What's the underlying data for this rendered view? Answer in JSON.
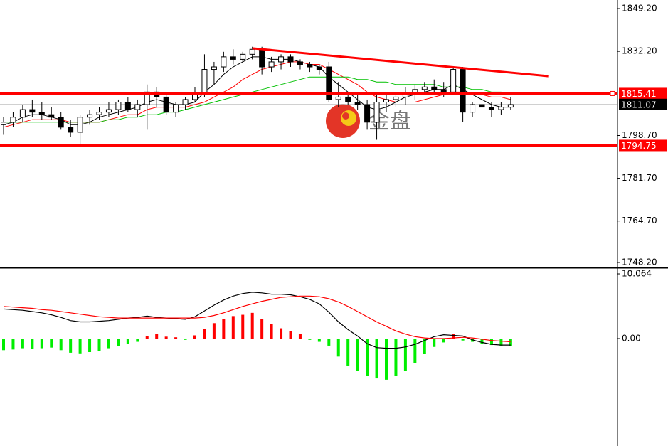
{
  "watermark": "金盘",
  "chart_data": [
    {
      "type": "candlestick",
      "categories": [
        null,
        null,
        null,
        null,
        null,
        null,
        null,
        null,
        null,
        null,
        null,
        null,
        null,
        null,
        null,
        null,
        null,
        null,
        null,
        null,
        null,
        null,
        null,
        null,
        null,
        null,
        null,
        null,
        null,
        null,
        null,
        null,
        null,
        null,
        null,
        null,
        null,
        null,
        null,
        null,
        null,
        null,
        null,
        null,
        null,
        null,
        null,
        null,
        null,
        null,
        null,
        null,
        null,
        null
      ],
      "open": [
        1803,
        1804,
        1806,
        1809,
        1808,
        1807,
        1806,
        1802,
        1800,
        1806,
        1807,
        1808,
        1809,
        1812,
        1809,
        1811,
        1816,
        1814,
        1808,
        1811,
        1813,
        1815,
        1825,
        1826,
        1830,
        1829,
        1831,
        1833,
        1826,
        1828,
        1830,
        1828,
        1827,
        1826,
        1826,
        1813,
        1814,
        1812,
        1811,
        1804,
        1812,
        1813,
        1814,
        1815,
        1817,
        1818,
        1817,
        1816,
        1825,
        1808,
        1811,
        1810,
        1809,
        1810
      ],
      "high": [
        1806,
        1808,
        1811,
        1813,
        1812,
        1810,
        1808,
        1805,
        1807,
        1809,
        1810,
        1812,
        1813,
        1814,
        1813,
        1819,
        1818,
        1816,
        1812,
        1814,
        1818,
        1831,
        1828,
        1832,
        1833,
        1832,
        1834,
        1834,
        1830,
        1831,
        1831,
        1829,
        1828,
        1827,
        1828,
        1820,
        1816,
        1816,
        1813,
        1815,
        1815,
        1816,
        1818,
        1819,
        1820,
        1821,
        1820,
        1826,
        1826,
        1812,
        1813,
        1812,
        1812,
        1814
      ],
      "low": [
        1799,
        1802,
        1804,
        1806,
        1805,
        1805,
        1801,
        1798,
        1795,
        1803,
        1805,
        1806,
        1807,
        1808,
        1806,
        1801,
        1810,
        1807,
        1806,
        1809,
        1812,
        1814,
        1819,
        1824,
        1827,
        1828,
        1829,
        1823,
        1824,
        1825,
        1826,
        1825,
        1824,
        1823,
        1812,
        1810,
        1811,
        1809,
        1801,
        1797,
        1808,
        1810,
        1811,
        1813,
        1815,
        1815,
        1814,
        1815,
        1804,
        1806,
        1808,
        1806,
        1807,
        1809
      ],
      "close": [
        1804,
        1806,
        1809,
        1808,
        1807,
        1806,
        1802,
        1800,
        1806,
        1807,
        1808,
        1809,
        1812,
        1809,
        1811,
        1816,
        1814,
        1808,
        1811,
        1813,
        1815,
        1825,
        1826,
        1830,
        1829,
        1831,
        1833,
        1826,
        1828,
        1830,
        1828,
        1827,
        1826,
        1825,
        1813,
        1814,
        1812,
        1811,
        1804,
        1812,
        1813,
        1814,
        1815,
        1817,
        1818,
        1817,
        1816,
        1825,
        1808,
        1811,
        1810,
        1809,
        1810,
        1811
      ],
      "up_color": "#ffffff",
      "down_color": "#000000",
      "series": [
        {
          "color": "#000000",
          "values": [
            1803,
            1804,
            1806,
            1807,
            1807,
            1806,
            1805,
            1803,
            1803,
            1804,
            1806,
            1807,
            1808,
            1809,
            1810,
            1812,
            1813,
            1812,
            1811,
            1811,
            1812,
            1816,
            1819,
            1823,
            1826,
            1828,
            1830,
            1830,
            1829,
            1829,
            1829,
            1828,
            1827,
            1826,
            1822,
            1819,
            1816,
            1813,
            1810,
            1809,
            1810,
            1812,
            1814,
            1815,
            1816,
            1817,
            1817,
            1819,
            1817,
            1815,
            1813,
            1811,
            1810,
            1810
          ]
        },
        {
          "color": "#ff0000",
          "values": [
            1802,
            1803,
            1804,
            1805,
            1805,
            1805,
            1805,
            1804,
            1804,
            1804,
            1804,
            1805,
            1806,
            1807,
            1807,
            1809,
            1810,
            1810,
            1810,
            1810,
            1811,
            1812,
            1814,
            1816,
            1818,
            1821,
            1823,
            1825,
            1826,
            1827,
            1828,
            1828,
            1827,
            1827,
            1825,
            1823,
            1821,
            1819,
            1816,
            1814,
            1813,
            1812,
            1812,
            1812,
            1813,
            1814,
            1815,
            1816,
            1816,
            1815,
            1815,
            1814,
            1814,
            1813
          ]
        },
        {
          "color": "#00c000",
          "values": [
            1804,
            1804,
            1804,
            1804,
            1804,
            1804,
            1804,
            1804,
            1804,
            1804,
            1804,
            1805,
            1805,
            1806,
            1806,
            1807,
            1807,
            1808,
            1808,
            1809,
            1810,
            1811,
            1812,
            1813,
            1814,
            1815,
            1816,
            1817,
            1818,
            1819,
            1820,
            1821,
            1822,
            1822,
            1822,
            1822,
            1822,
            1821,
            1821,
            1820,
            1820,
            1819,
            1819,
            1819,
            1819,
            1819,
            1818,
            1818,
            1818,
            1817,
            1817,
            1816,
            1816,
            1815
          ]
        }
      ],
      "trendline": {
        "x": [
          26,
          57
        ],
        "values": [
          1833.4,
          1822.3
        ],
        "color": "#ff0000"
      },
      "hlines": [
        {
          "value": 1815.41,
          "color": "#ff0000"
        },
        {
          "value": 1794.75,
          "color": "#ff0000"
        }
      ],
      "current_price": {
        "value": 1811.07,
        "color": "#c0c0c0"
      },
      "ylim": [
        1746.5,
        1852.6
      ],
      "yticks": [
        {
          "value": 1849.2,
          "label": "1849.20"
        },
        {
          "value": 1832.2,
          "label": "1832.20"
        },
        {
          "value": 1798.7,
          "label": "1798.70"
        },
        {
          "value": 1781.7,
          "label": "1781.70"
        },
        {
          "value": 1764.7,
          "label": "1764.70"
        },
        {
          "value": 1748.2,
          "label": "1748.20"
        }
      ]
    },
    {
      "type": "macd",
      "histogram": [
        -1.8,
        -1.7,
        -1.5,
        -1.6,
        -1.5,
        -1.4,
        -1.8,
        -2.2,
        -2.3,
        -2.1,
        -1.9,
        -1.5,
        -1.2,
        -0.8,
        -0.5,
        0.4,
        0.7,
        0.3,
        0.2,
        -0.2,
        0.5,
        1.5,
        2.4,
        3.0,
        3.5,
        3.7,
        4.0,
        3.0,
        2.3,
        1.6,
        1.2,
        0.7,
        -0.2,
        -0.5,
        -1.1,
        -2.8,
        -4.2,
        -5.0,
        -5.8,
        -6.2,
        -6.4,
        -5.8,
        -5.0,
        -3.8,
        -2.4,
        -1.3,
        -0.6,
        0.7,
        -0.3,
        -0.5,
        -0.8,
        -1.0,
        -1.1,
        -1.2
      ],
      "positive_color": "#ff0000",
      "negative_color": "#00ee00",
      "series": [
        {
          "color": "#000000",
          "values": [
            4.6,
            4.5,
            4.4,
            4.2,
            4.0,
            3.7,
            3.3,
            2.8,
            2.6,
            2.6,
            2.7,
            2.8,
            3.0,
            3.2,
            3.3,
            3.5,
            3.3,
            3.2,
            3.1,
            3.0,
            3.4,
            4.3,
            5.2,
            6.0,
            6.6,
            7.0,
            7.2,
            7.1,
            6.9,
            6.9,
            6.8,
            6.5,
            6.1,
            5.4,
            4.1,
            2.6,
            1.4,
            0.4,
            -0.8,
            -1.4,
            -1.5,
            -1.5,
            -1.3,
            -0.9,
            -0.3,
            0.3,
            0.6,
            0.5,
            0.4,
            -0.2,
            -0.6,
            -0.9,
            -1.0,
            -1.0
          ]
        },
        {
          "color": "#ff0000",
          "values": [
            5.0,
            4.9,
            4.8,
            4.7,
            4.5,
            4.4,
            4.2,
            4.0,
            3.8,
            3.6,
            3.4,
            3.3,
            3.2,
            3.2,
            3.2,
            3.2,
            3.2,
            3.2,
            3.2,
            3.2,
            3.2,
            3.3,
            3.6,
            4.0,
            4.5,
            5.0,
            5.4,
            5.8,
            6.1,
            6.4,
            6.5,
            6.6,
            6.6,
            6.5,
            6.2,
            5.7,
            5.0,
            4.2,
            3.4,
            2.6,
            1.9,
            1.2,
            0.7,
            0.3,
            0.1,
            0.0,
            0.0,
            0.1,
            0.2,
            0.1,
            -0.1,
            -0.3,
            -0.4,
            -0.5
          ]
        }
      ],
      "ylim": [
        -16.7,
        10.84
      ],
      "yticks": [
        {
          "value": 10.064,
          "label": "10.064"
        },
        {
          "value": 0,
          "label": "0.00"
        }
      ]
    }
  ]
}
